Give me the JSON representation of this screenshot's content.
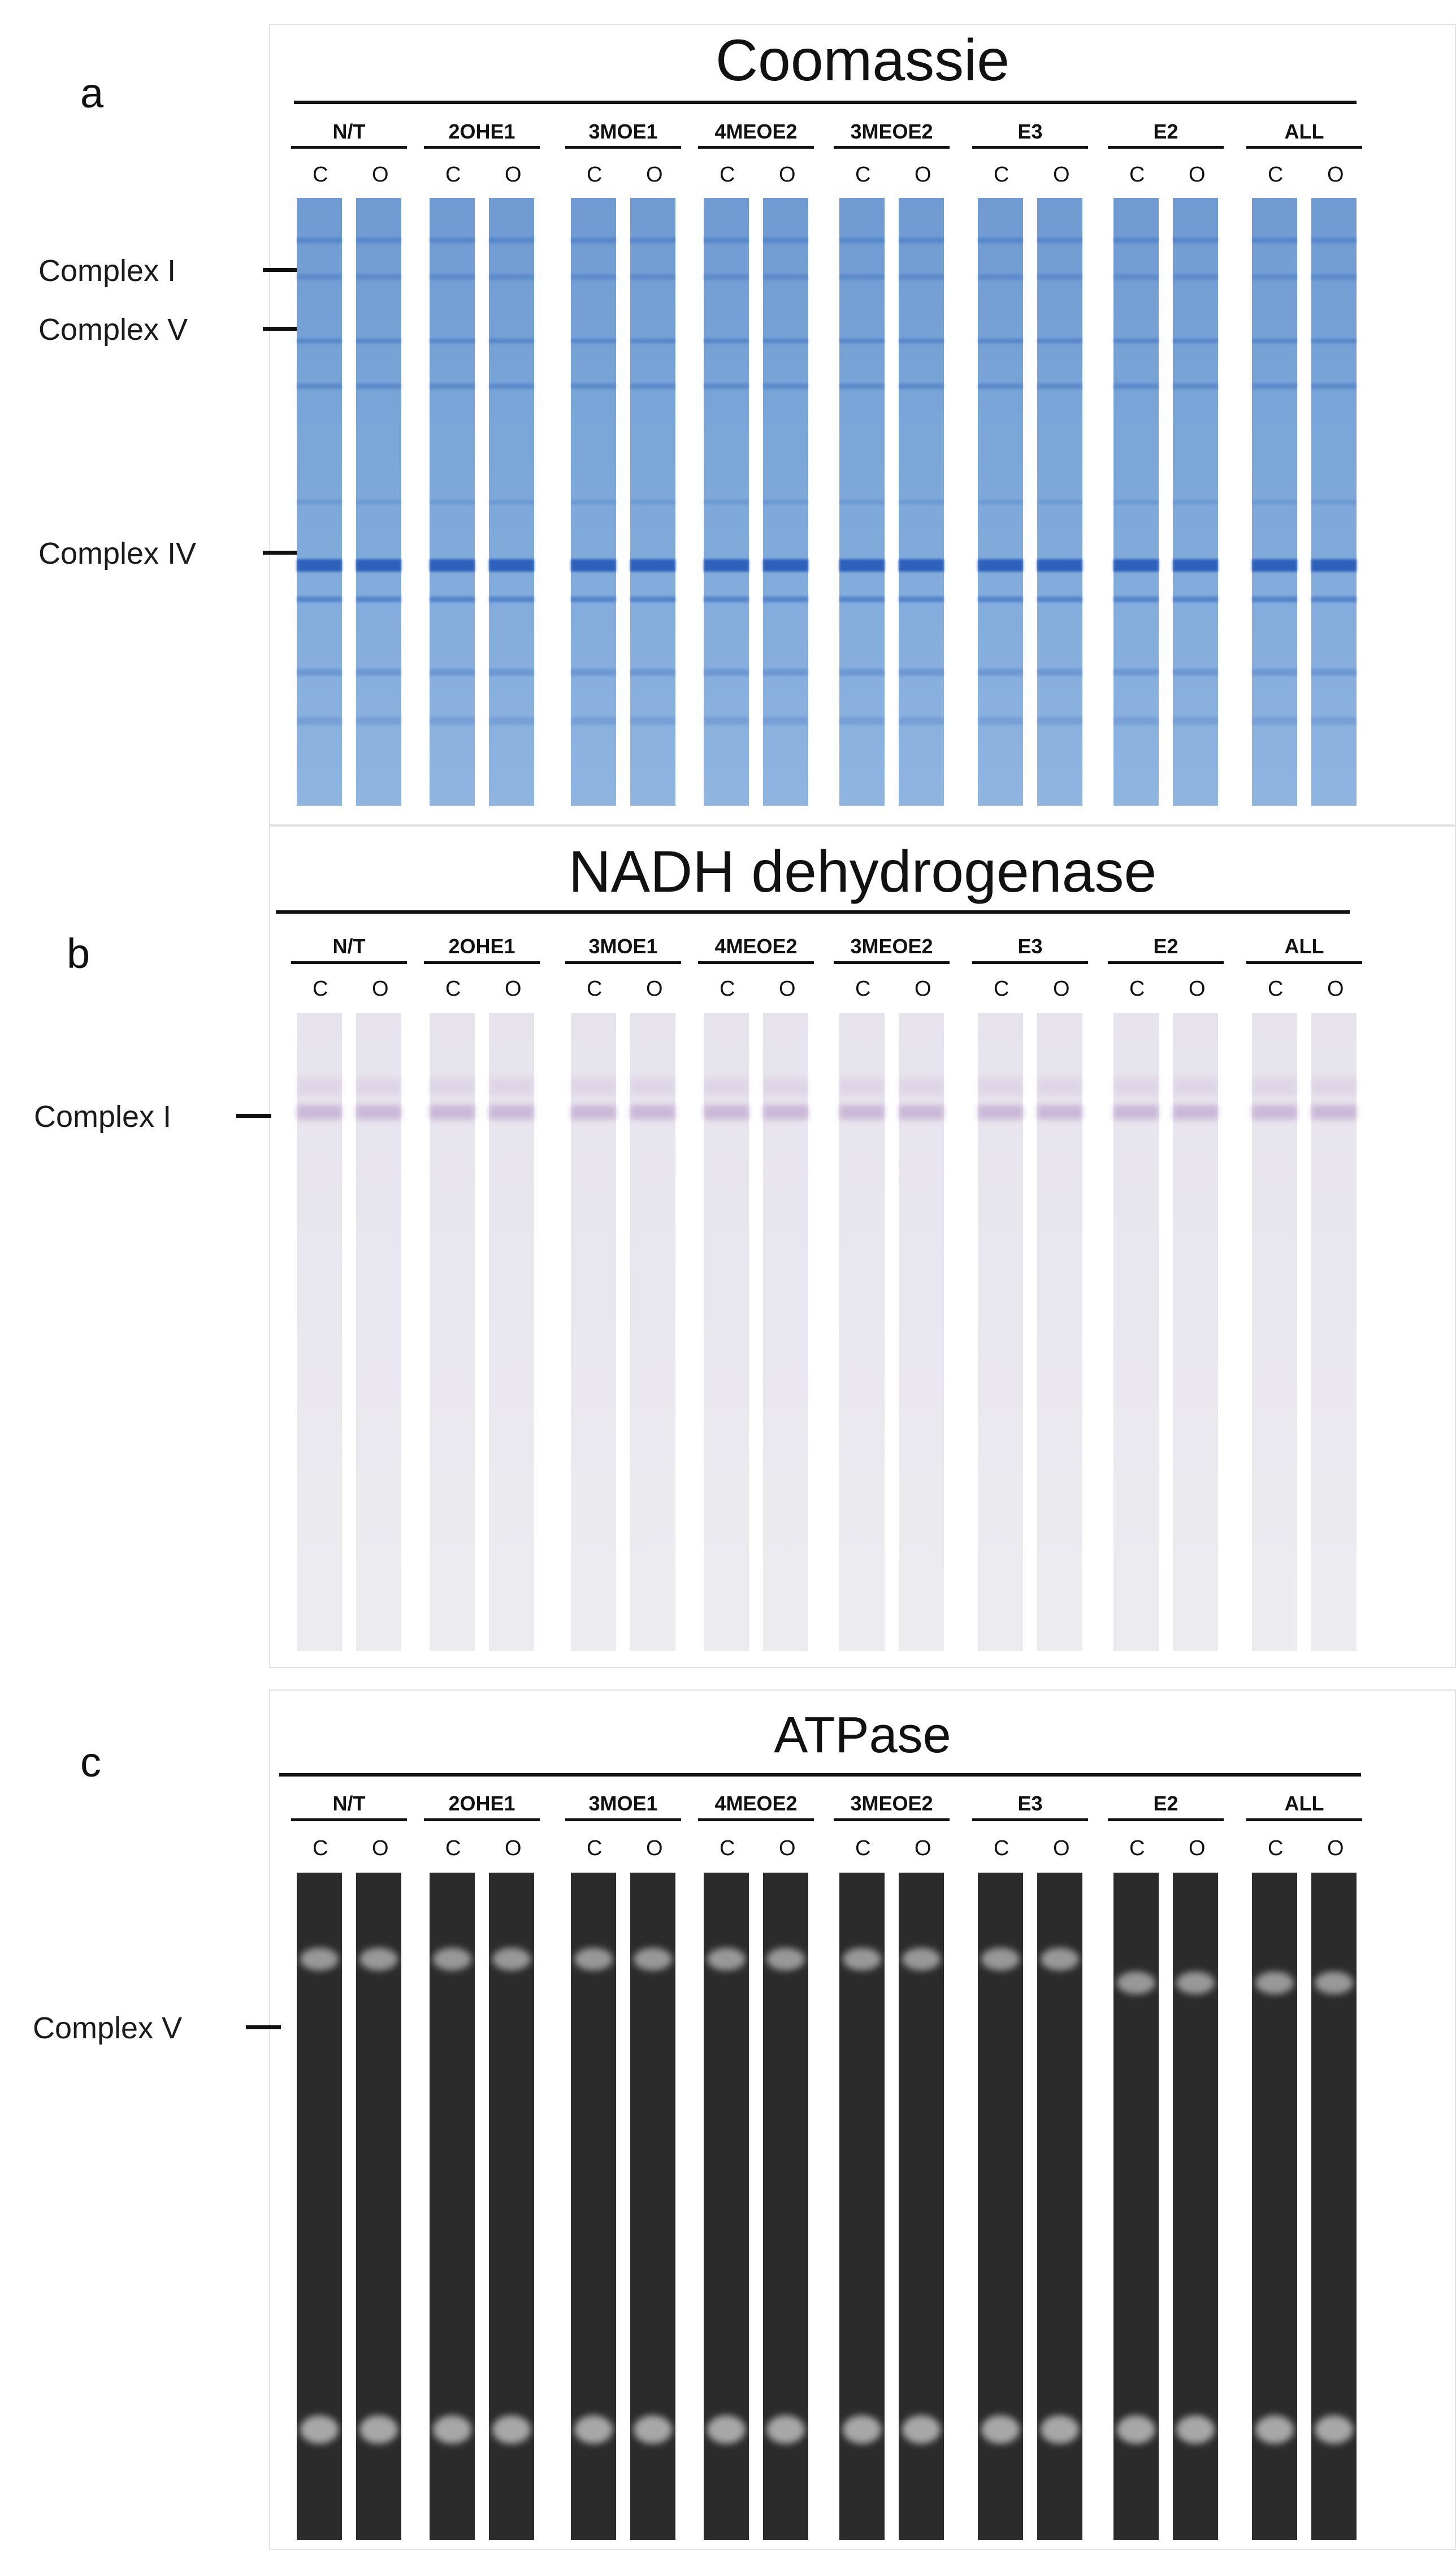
{
  "groups": [
    "N/T",
    "2OHE1",
    "3MOE1",
    "4MEOE2",
    "3MEOE2",
    "E3",
    "E2",
    "ALL"
  ],
  "lane_labels": [
    "C",
    "O"
  ],
  "panels": [
    {
      "letter": "a",
      "title": "Coomassie",
      "stain": "coomassie",
      "colors": {
        "lane": "#7aa6d8",
        "band": "#1f55b6"
      },
      "markers": [
        "Complex I",
        "Complex V",
        "Complex IV"
      ]
    },
    {
      "letter": "b",
      "title": "NADH dehydrogenase",
      "stain": "nadh",
      "colors": {
        "lane": "#ececf0",
        "band": "#b595c8"
      },
      "markers": [
        "Complex I"
      ]
    },
    {
      "letter": "c",
      "title": "ATPase",
      "stain": "atpase",
      "colors": {
        "lane": "#2b2b2b",
        "band": "#bdbdbd"
      },
      "markers": [
        "Complex V"
      ]
    }
  ]
}
